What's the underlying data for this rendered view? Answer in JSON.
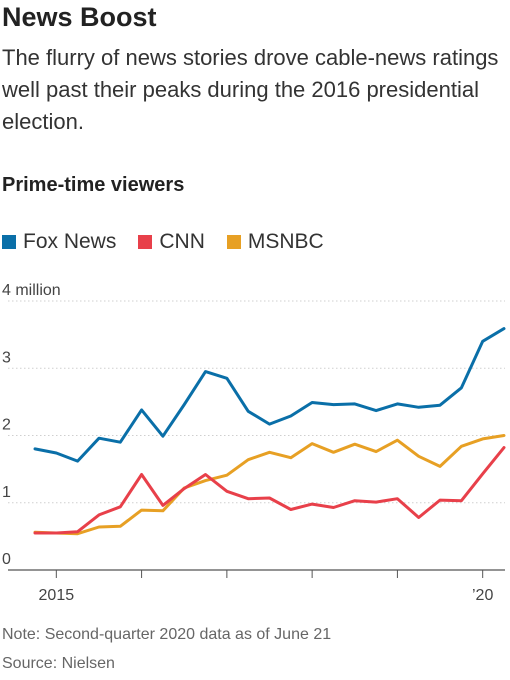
{
  "title": "News Boost",
  "subtitle": "The flurry of news stories drove cable-news ratings well past their peaks during the 2016 presidential election.",
  "section_title": "Prime-time viewers",
  "note": "Note: Second-quarter 2020 data as of June 21",
  "source": "Source: Nielsen",
  "chart_data": {
    "type": "line",
    "title": "Prime-time viewers",
    "ylim": [
      0,
      4
    ],
    "y_ticks": [
      {
        "value": 0,
        "label": "0"
      },
      {
        "value": 1,
        "label": "1"
      },
      {
        "value": 2,
        "label": "2"
      },
      {
        "value": 3,
        "label": "3"
      },
      {
        "value": 4,
        "label": "4 million"
      }
    ],
    "x": [
      "2014-Q4",
      "2015-Q1",
      "2015-Q2",
      "2015-Q3",
      "2015-Q4",
      "2016-Q1",
      "2016-Q2",
      "2016-Q3",
      "2016-Q4",
      "2017-Q1",
      "2017-Q2",
      "2017-Q3",
      "2017-Q4",
      "2018-Q1",
      "2018-Q2",
      "2018-Q3",
      "2018-Q4",
      "2019-Q1",
      "2019-Q2",
      "2019-Q3",
      "2019-Q4",
      "2020-Q1",
      "2020-Q2"
    ],
    "x_ticks": [
      {
        "x": "2015-Q1",
        "label": "2015"
      },
      {
        "x": "2016-Q1",
        "label": ""
      },
      {
        "x": "2017-Q1",
        "label": ""
      },
      {
        "x": "2018-Q1",
        "label": ""
      },
      {
        "x": "2019-Q1",
        "label": ""
      },
      {
        "x": "2020-Q1",
        "label": "’20"
      }
    ],
    "legend_position": "top-left",
    "grid": "horizontal",
    "series": [
      {
        "name": "Fox News",
        "color": "#0a6fa8",
        "values": [
          1.8,
          1.74,
          1.62,
          1.96,
          1.9,
          2.38,
          1.99,
          2.46,
          2.95,
          2.85,
          2.36,
          2.17,
          2.29,
          2.49,
          2.46,
          2.47,
          2.37,
          2.47,
          2.42,
          2.45,
          2.71,
          3.4,
          3.59
        ]
      },
      {
        "name": "CNN",
        "color": "#e8404a",
        "values": [
          0.55,
          0.55,
          0.57,
          0.82,
          0.94,
          1.42,
          0.96,
          1.21,
          1.42,
          1.17,
          1.06,
          1.07,
          0.9,
          0.98,
          0.93,
          1.03,
          1.01,
          1.06,
          0.78,
          1.04,
          1.03,
          1.43,
          1.82
        ]
      },
      {
        "name": "MSNBC",
        "color": "#e7a024",
        "values": [
          0.56,
          0.55,
          0.54,
          0.64,
          0.65,
          0.89,
          0.88,
          1.22,
          1.33,
          1.41,
          1.64,
          1.75,
          1.67,
          1.88,
          1.75,
          1.87,
          1.76,
          1.93,
          1.69,
          1.54,
          1.84,
          1.95,
          2.0
        ]
      }
    ]
  }
}
